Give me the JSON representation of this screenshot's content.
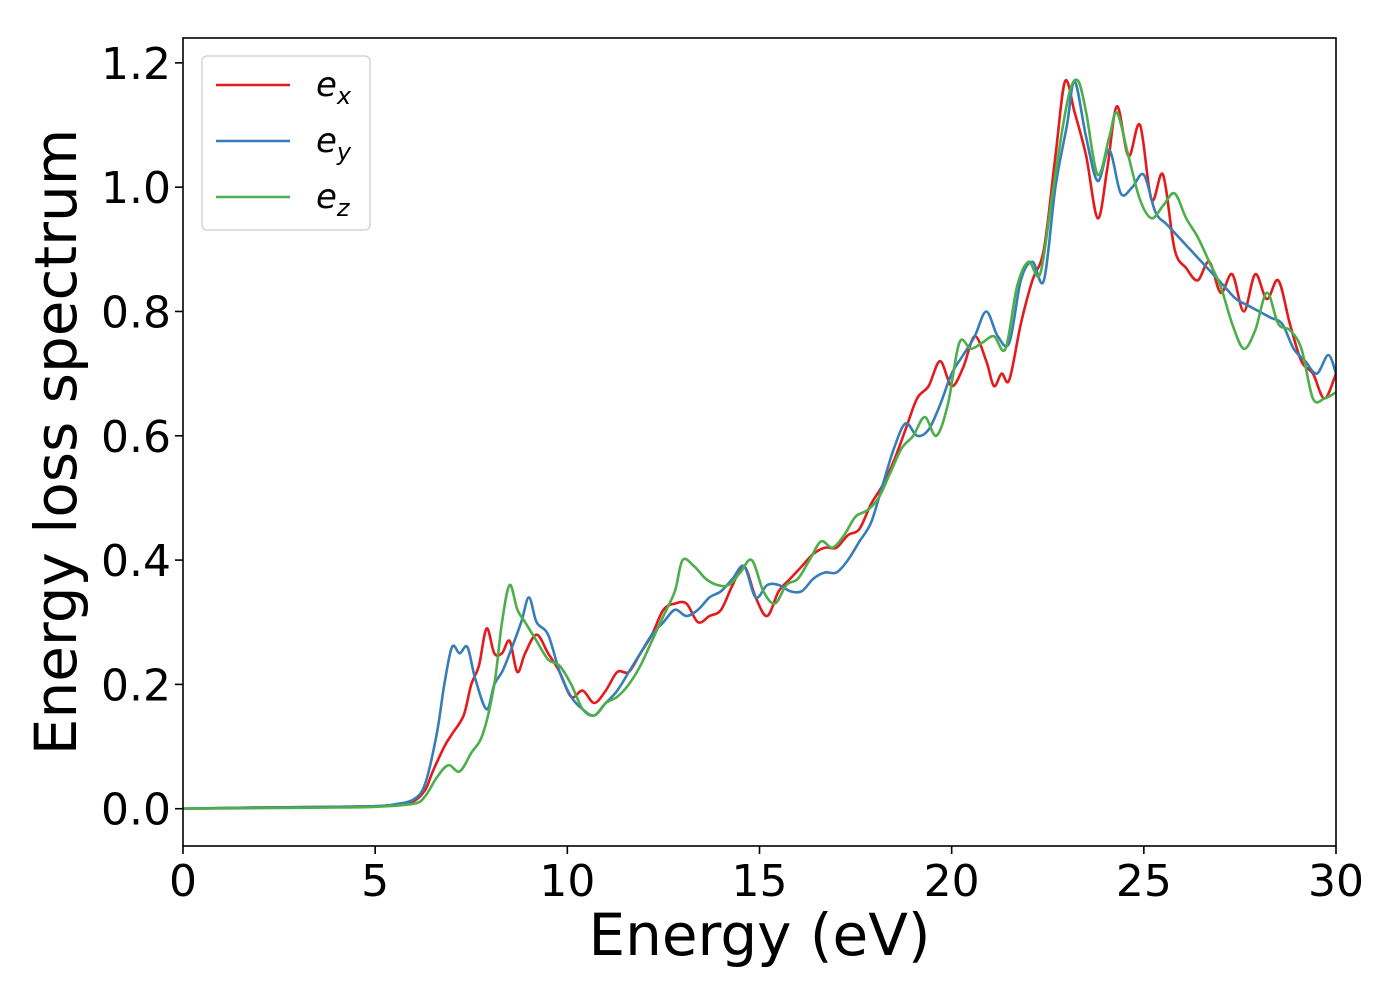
{
  "chart_data": {
    "type": "line",
    "title": "",
    "xlabel": "Energy (eV)",
    "ylabel": "Energy loss spectrum",
    "xlim": [
      0,
      30
    ],
    "ylim": [
      -0.06,
      1.24
    ],
    "xticks": [
      0,
      5,
      10,
      15,
      20,
      25,
      30
    ],
    "xtick_labels": [
      "0",
      "5",
      "10",
      "15",
      "20",
      "25",
      "30"
    ],
    "yticks": [
      0.0,
      0.2,
      0.4,
      0.6,
      0.8,
      1.0,
      1.2
    ],
    "ytick_labels": [
      "0.0",
      "0.2",
      "0.4",
      "0.6",
      "0.8",
      "1.0",
      "1.2"
    ],
    "grid": false,
    "legend_position": "top-left",
    "series": [
      {
        "name": "e_x",
        "legend_main": "e",
        "legend_sub": "x",
        "color": "#e41a1c",
        "x": [
          0,
          2,
          4,
          5,
          5.5,
          6,
          6.3,
          6.5,
          6.8,
          7,
          7.3,
          7.5,
          7.7,
          7.9,
          8.1,
          8.3,
          8.5,
          8.7,
          8.9,
          9.2,
          9.5,
          9.8,
          10.1,
          10.4,
          10.7,
          11,
          11.3,
          11.6,
          11.9,
          12.2,
          12.5,
          12.8,
          13.1,
          13.4,
          13.7,
          14,
          14.3,
          14.6,
          14.9,
          15.2,
          15.5,
          15.8,
          16.1,
          16.4,
          16.7,
          17,
          17.3,
          17.6,
          17.9,
          18.2,
          18.5,
          18.8,
          19.1,
          19.4,
          19.7,
          20,
          20.3,
          20.6,
          20.9,
          21.1,
          21.3,
          21.5,
          21.8,
          22.1,
          22.4,
          22.7,
          22.95,
          23.2,
          23.5,
          23.8,
          24.05,
          24.3,
          24.6,
          24.9,
          25.2,
          25.5,
          25.8,
          26.1,
          26.4,
          26.7,
          27,
          27.3,
          27.6,
          27.9,
          28.2,
          28.5,
          28.8,
          29.1,
          29.4,
          29.7,
          30
        ],
        "y": [
          0,
          0.002,
          0.003,
          0.004,
          0.006,
          0.012,
          0.03,
          0.06,
          0.1,
          0.12,
          0.15,
          0.2,
          0.23,
          0.29,
          0.25,
          0.25,
          0.27,
          0.22,
          0.25,
          0.28,
          0.25,
          0.22,
          0.18,
          0.19,
          0.17,
          0.19,
          0.22,
          0.22,
          0.25,
          0.28,
          0.32,
          0.33,
          0.33,
          0.3,
          0.31,
          0.32,
          0.36,
          0.39,
          0.34,
          0.31,
          0.35,
          0.37,
          0.39,
          0.41,
          0.42,
          0.42,
          0.44,
          0.45,
          0.49,
          0.52,
          0.56,
          0.61,
          0.66,
          0.68,
          0.72,
          0.68,
          0.71,
          0.76,
          0.72,
          0.68,
          0.7,
          0.69,
          0.78,
          0.85,
          0.9,
          1.05,
          1.17,
          1.12,
          1.05,
          0.95,
          1.03,
          1.13,
          1.05,
          1.1,
          0.98,
          1.02,
          0.9,
          0.87,
          0.85,
          0.88,
          0.83,
          0.86,
          0.8,
          0.86,
          0.82,
          0.85,
          0.78,
          0.72,
          0.7,
          0.66,
          0.7
        ]
      },
      {
        "name": "e_y",
        "legend_main": "e",
        "legend_sub": "y",
        "color": "#377eb8",
        "x": [
          0,
          2,
          4,
          5,
          5.5,
          6,
          6.3,
          6.6,
          6.8,
          7,
          7.2,
          7.4,
          7.6,
          7.9,
          8.1,
          8.3,
          8.5,
          8.8,
          9,
          9.2,
          9.5,
          9.8,
          10.1,
          10.4,
          10.7,
          11,
          11.3,
          11.6,
          11.9,
          12.2,
          12.5,
          12.8,
          13.1,
          13.4,
          13.7,
          14,
          14.3,
          14.6,
          14.9,
          15.2,
          15.5,
          15.8,
          16.1,
          16.4,
          16.7,
          17,
          17.3,
          17.6,
          17.9,
          18.2,
          18.5,
          18.8,
          19.1,
          19.4,
          19.7,
          20,
          20.3,
          20.6,
          20.9,
          21.2,
          21.5,
          21.8,
          22.1,
          22.4,
          22.7,
          23,
          23.2,
          23.5,
          23.8,
          24.1,
          24.4,
          24.7,
          25,
          25.3,
          25.6,
          25.9,
          26.2,
          26.5,
          26.8,
          27.1,
          27.4,
          27.7,
          28,
          28.3,
          28.6,
          28.9,
          29.2,
          29.5,
          29.8,
          30
        ],
        "y": [
          0,
          0.002,
          0.003,
          0.004,
          0.007,
          0.015,
          0.04,
          0.12,
          0.2,
          0.26,
          0.25,
          0.26,
          0.21,
          0.16,
          0.2,
          0.22,
          0.25,
          0.3,
          0.34,
          0.3,
          0.28,
          0.22,
          0.18,
          0.16,
          0.15,
          0.17,
          0.19,
          0.22,
          0.25,
          0.28,
          0.3,
          0.32,
          0.31,
          0.32,
          0.34,
          0.35,
          0.37,
          0.39,
          0.34,
          0.36,
          0.36,
          0.35,
          0.35,
          0.37,
          0.38,
          0.38,
          0.4,
          0.43,
          0.46,
          0.52,
          0.58,
          0.62,
          0.6,
          0.61,
          0.65,
          0.7,
          0.73,
          0.76,
          0.8,
          0.76,
          0.75,
          0.85,
          0.88,
          0.85,
          1.0,
          1.1,
          1.17,
          1.08,
          1.01,
          1.06,
          0.99,
          1.0,
          1.02,
          0.96,
          0.94,
          0.92,
          0.9,
          0.88,
          0.86,
          0.84,
          0.82,
          0.81,
          0.8,
          0.79,
          0.78,
          0.74,
          0.72,
          0.7,
          0.73,
          0.7
        ]
      },
      {
        "name": "e_z",
        "legend_main": "e",
        "legend_sub": "z",
        "color": "#4daf4a",
        "x": [
          0,
          2,
          4,
          5,
          6,
          6.3,
          6.6,
          6.9,
          7.2,
          7.5,
          7.8,
          8.1,
          8.3,
          8.5,
          8.7,
          8.9,
          9.2,
          9.5,
          9.8,
          10.1,
          10.4,
          10.7,
          11,
          11.3,
          11.6,
          11.9,
          12.2,
          12.5,
          12.8,
          13,
          13.3,
          13.6,
          13.9,
          14.2,
          14.5,
          14.8,
          15.1,
          15.4,
          15.7,
          16,
          16.3,
          16.6,
          16.9,
          17.2,
          17.5,
          17.8,
          18.1,
          18.4,
          18.7,
          19,
          19.3,
          19.6,
          19.9,
          20.2,
          20.5,
          20.8,
          21.1,
          21.4,
          21.7,
          22,
          22.3,
          22.6,
          22.9,
          23.1,
          23.3,
          23.5,
          23.8,
          24.1,
          24.3,
          24.6,
          24.9,
          25.2,
          25.5,
          25.8,
          26.1,
          26.4,
          26.7,
          27,
          27.3,
          27.6,
          27.9,
          28.2,
          28.5,
          28.8,
          29.1,
          29.4,
          29.7,
          30
        ],
        "y": [
          0,
          0.001,
          0.002,
          0.003,
          0.008,
          0.02,
          0.05,
          0.07,
          0.06,
          0.09,
          0.12,
          0.2,
          0.3,
          0.36,
          0.32,
          0.3,
          0.27,
          0.24,
          0.23,
          0.2,
          0.16,
          0.15,
          0.17,
          0.18,
          0.2,
          0.23,
          0.27,
          0.31,
          0.35,
          0.4,
          0.39,
          0.37,
          0.36,
          0.36,
          0.38,
          0.4,
          0.35,
          0.33,
          0.36,
          0.37,
          0.4,
          0.43,
          0.42,
          0.44,
          0.47,
          0.48,
          0.5,
          0.54,
          0.58,
          0.6,
          0.63,
          0.6,
          0.65,
          0.75,
          0.74,
          0.75,
          0.76,
          0.74,
          0.84,
          0.88,
          0.86,
          0.98,
          1.1,
          1.16,
          1.17,
          1.12,
          1.02,
          1.08,
          1.12,
          1.05,
          0.98,
          0.95,
          0.97,
          0.99,
          0.95,
          0.92,
          0.88,
          0.84,
          0.78,
          0.74,
          0.77,
          0.83,
          0.78,
          0.77,
          0.74,
          0.66,
          0.66,
          0.67
        ]
      }
    ]
  }
}
